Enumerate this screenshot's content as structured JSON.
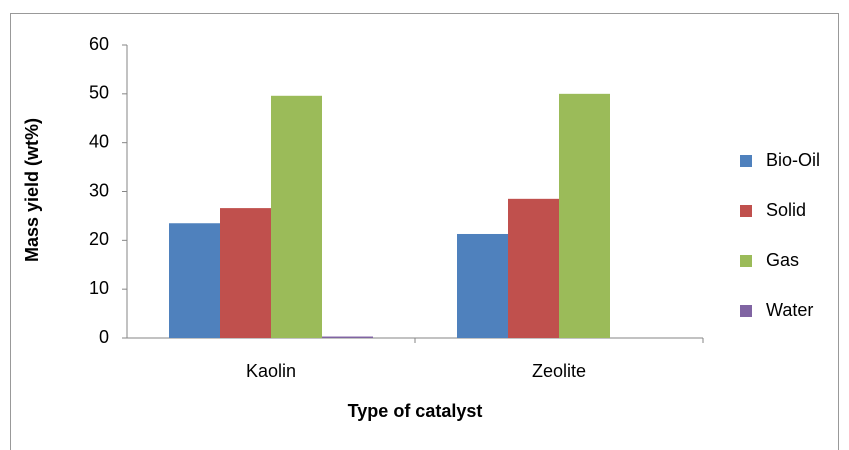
{
  "chart_data": {
    "type": "bar",
    "x_label": "Type of catalyst",
    "y_label": "Mass yield (wt%)",
    "categories": [
      "Kaolin",
      "Zeolite"
    ],
    "series": [
      {
        "name": "Bio-Oil",
        "color": "#4f81bd",
        "values": [
          23.5,
          21.3
        ]
      },
      {
        "name": "Solid",
        "color": "#c0504d",
        "values": [
          26.6,
          28.5
        ]
      },
      {
        "name": "Gas",
        "color": "#9bbb59",
        "values": [
          49.6,
          50
        ]
      },
      {
        "name": "Water",
        "color": "#8064a2",
        "values": [
          0.3,
          0
        ]
      }
    ],
    "ylim": [
      0,
      60
    ],
    "yticks": [
      0,
      10,
      20,
      30,
      40,
      50,
      60
    ],
    "grid": false,
    "legend": "right"
  }
}
